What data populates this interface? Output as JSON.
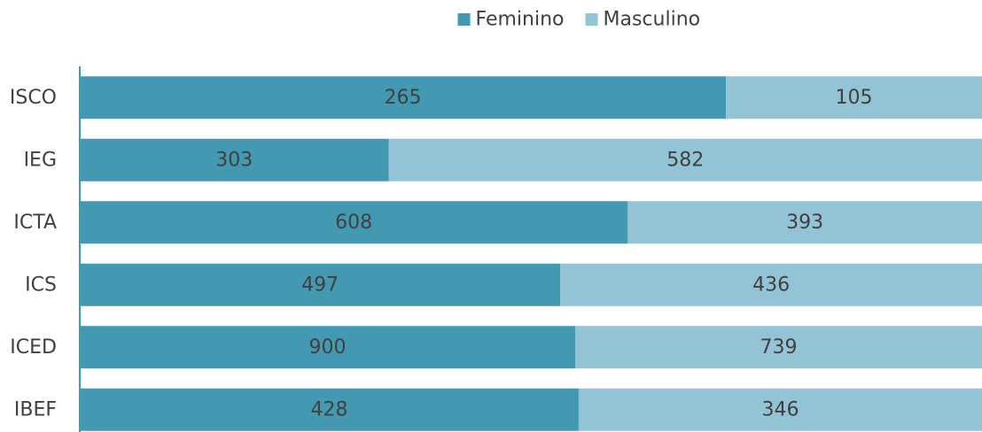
{
  "chart_data": {
    "type": "bar",
    "orientation": "horizontal",
    "stacking": "percent",
    "legend": "top",
    "categories": [
      "ISCO",
      "IEG",
      "ICTA",
      "ICS",
      "ICED",
      "IBEF"
    ],
    "series": [
      {
        "name": "Feminino",
        "color": "#4399b1",
        "values": [
          265,
          303,
          608,
          497,
          900,
          428
        ]
      },
      {
        "name": "Masculino",
        "color": "#93c4d5",
        "values": [
          105,
          582,
          393,
          436,
          739,
          346
        ]
      }
    ]
  }
}
